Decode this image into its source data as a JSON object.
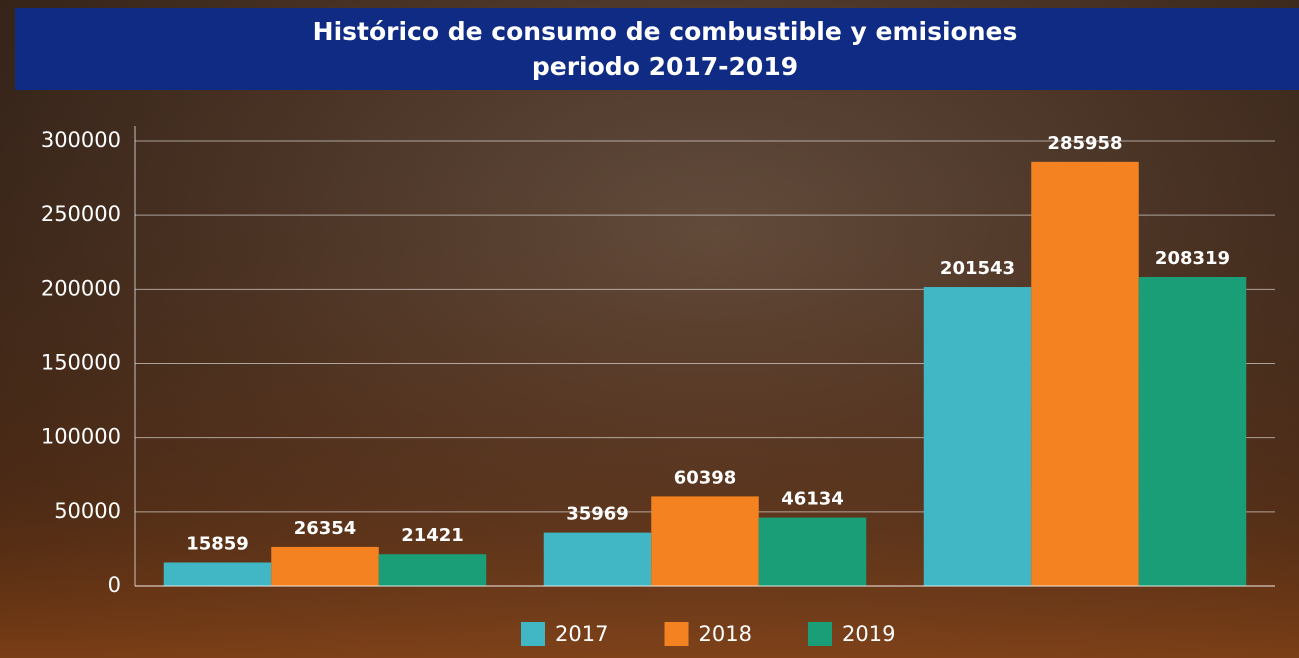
{
  "chart_data": {
    "type": "bar",
    "title": [
      "Histórico de consumo de combustible y emisiones",
      "periodo 2017-2019"
    ],
    "categories": [
      null,
      null,
      null
    ],
    "series": [
      {
        "name": "2017",
        "color": "#41b6c4",
        "values": [
          15859,
          35969,
          201543
        ]
      },
      {
        "name": "2018",
        "color": "#f58220",
        "values": [
          26354,
          60398,
          285958
        ]
      },
      {
        "name": "2019",
        "color": "#1a9e77",
        "values": [
          21421,
          46134,
          208319
        ]
      }
    ],
    "ylim": [
      0,
      300000
    ],
    "yticks": [
      0,
      50000,
      100000,
      150000,
      200000,
      250000,
      300000
    ],
    "grid": true,
    "legend": "bottom"
  }
}
